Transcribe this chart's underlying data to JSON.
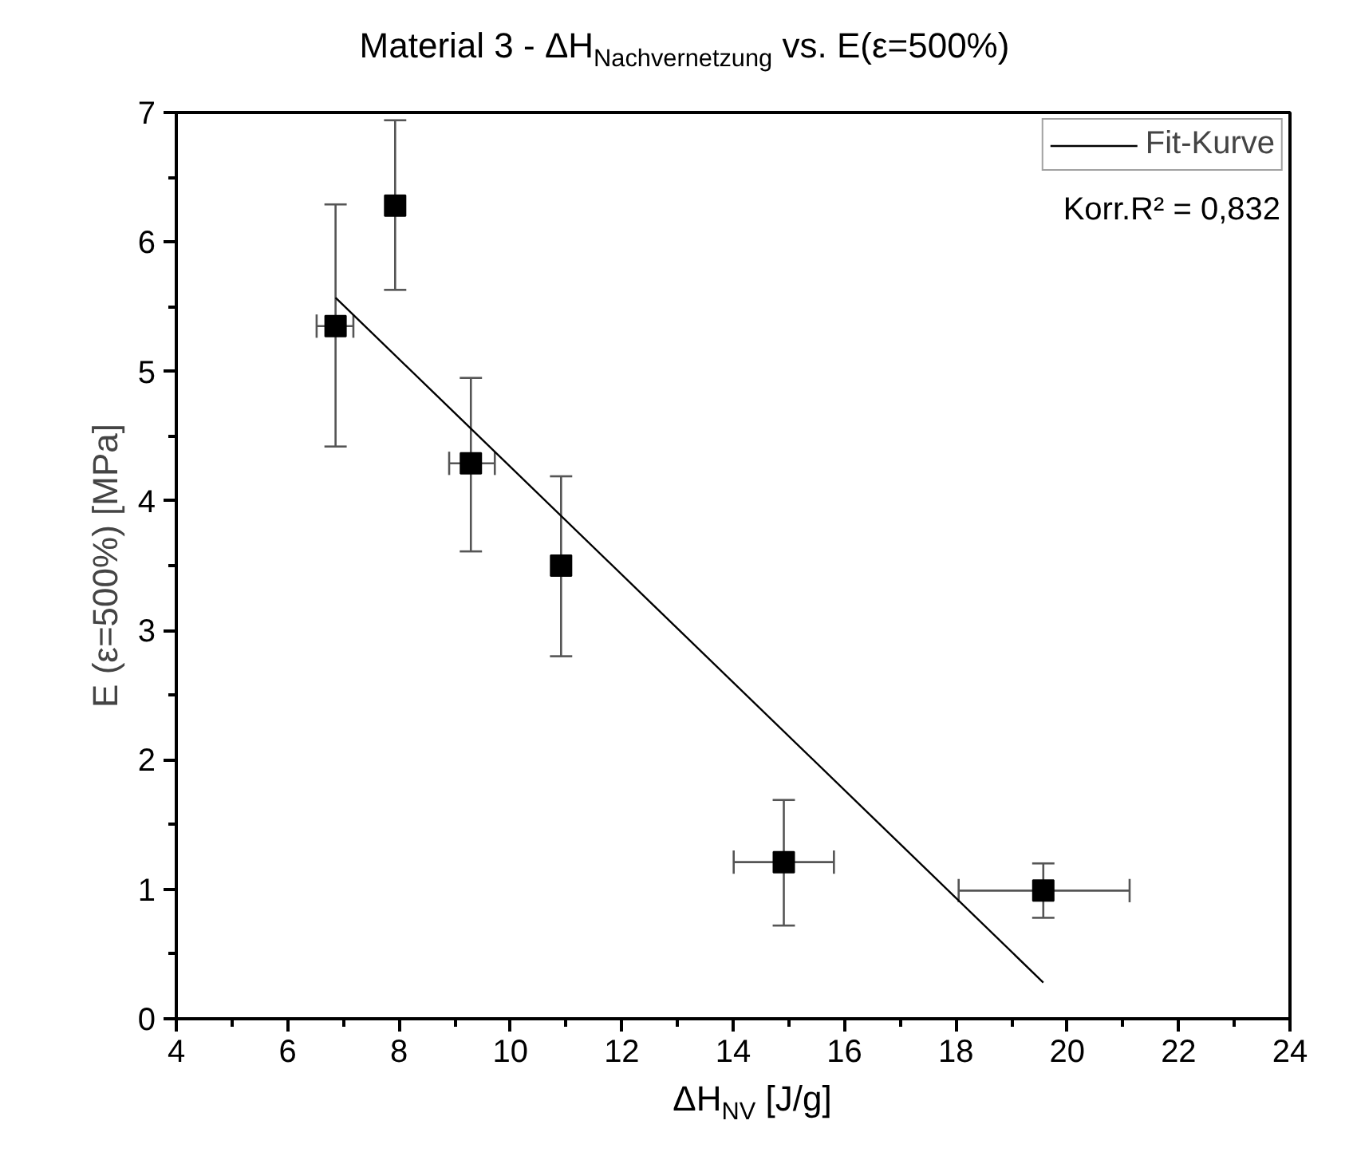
{
  "chart_data": {
    "type": "scatter",
    "title": "Material 3 - ΔH$_{Nachvernetzung}$ vs. E(ε=500%)",
    "xlabel": "ΔH$_{NV}$ [J/g]",
    "ylabel": "E (ε=500%) [MPa]",
    "annotations": [
      "Korr.R² = 0,832"
    ],
    "xlim": [
      4,
      24
    ],
    "xticks": [
      4,
      6,
      8,
      10,
      12,
      14,
      16,
      18,
      20,
      22,
      24
    ],
    "ylim": [
      0,
      7
    ],
    "yticks": [
      0,
      1,
      2,
      3,
      4,
      5,
      6,
      7
    ],
    "grid": false,
    "legend": "top right",
    "series": [
      {
        "marker": "square",
        "color": "#000000",
        "x": [
          6.86,
          7.93,
          9.29,
          10.91,
          14.91,
          19.57
        ],
        "values": [
          5.35,
          6.28,
          4.29,
          3.5,
          1.21,
          0.99
        ],
        "errors": [
          [
            4.42,
            6.29
          ],
          [
            5.63,
            6.94
          ],
          [
            3.61,
            4.95
          ],
          [
            2.8,
            4.19
          ],
          [
            0.72,
            1.69
          ],
          [
            0.78,
            1.2
          ]
        ],
        "xerrors": [
          [
            6.52,
            7.18
          ],
          null,
          [
            8.9,
            9.72
          ],
          null,
          [
            14.01,
            15.81
          ],
          [
            18.05,
            21.12
          ]
        ]
      },
      {
        "type": "line",
        "name": "Fit-Kurve",
        "line_style": "solid",
        "color": "#000000",
        "x": [
          6.86,
          19.57
        ],
        "values": [
          5.57,
          0.28
        ]
      }
    ]
  }
}
